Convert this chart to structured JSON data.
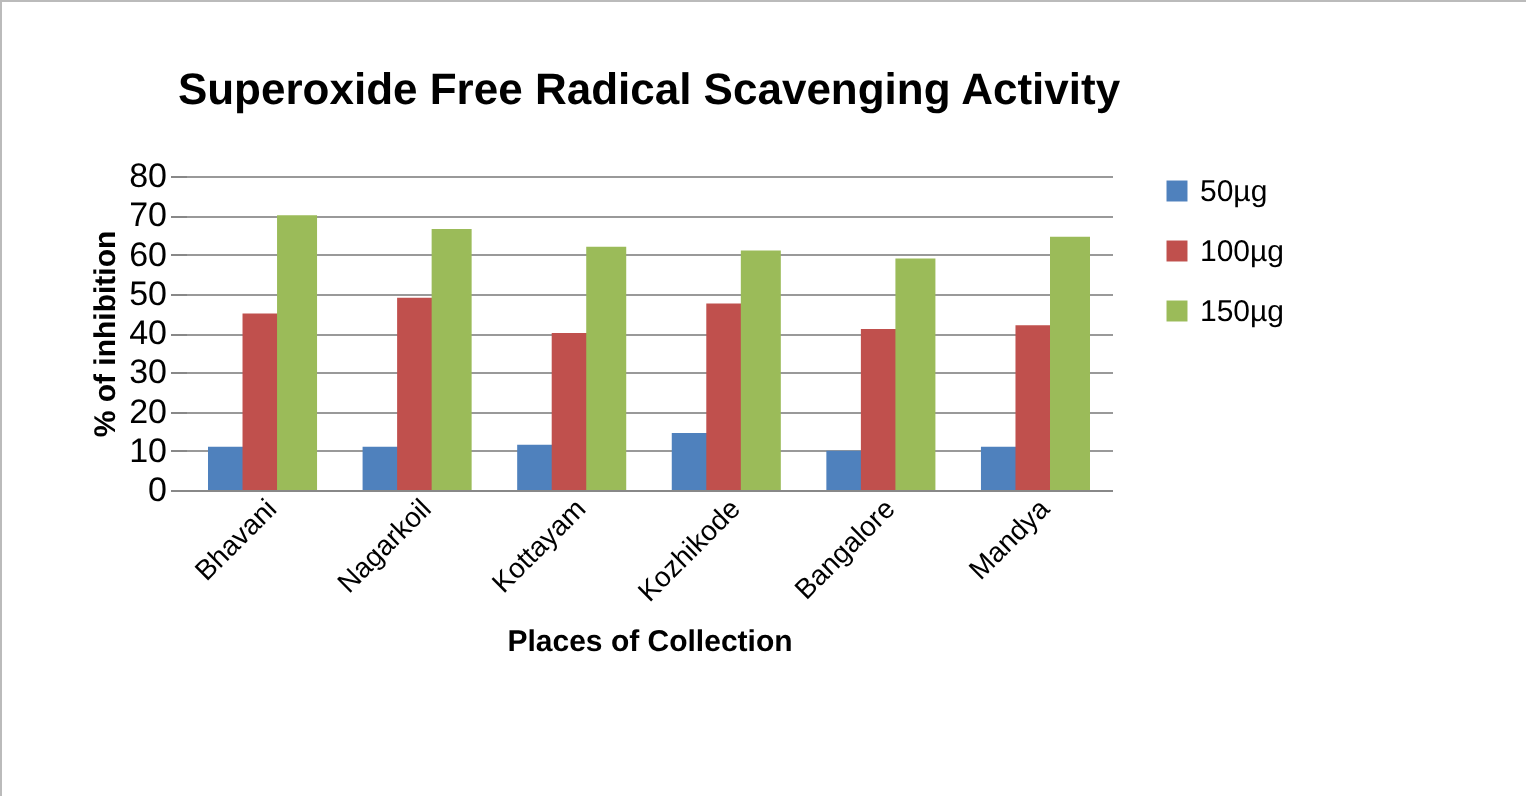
{
  "chart_data": {
    "type": "bar",
    "title": "Superoxide Free Radical Scavenging Activity",
    "xlabel": "Places of Collection",
    "ylabel": "% of inhibition",
    "categories": [
      "Bhavani",
      "Nagarkoil",
      "Kottayam",
      "Kozhikode",
      "Bangalore",
      "Mandya"
    ],
    "series": [
      {
        "name": "50µg",
        "color": "#4f81bd",
        "values": [
          11,
          11,
          11.5,
          14.5,
          10,
          11
        ]
      },
      {
        "name": "100µg",
        "color": "#c0504d",
        "values": [
          45,
          49,
          40,
          47.5,
          41,
          42
        ]
      },
      {
        "name": "150µg",
        "color": "#9bbb59",
        "values": [
          70,
          66.5,
          62,
          61,
          59,
          64.5
        ]
      }
    ],
    "ylim": [
      0,
      80
    ],
    "yticks": [
      0,
      10,
      20,
      30,
      40,
      50,
      60,
      70,
      80
    ],
    "grid": "y",
    "legend": "right"
  }
}
